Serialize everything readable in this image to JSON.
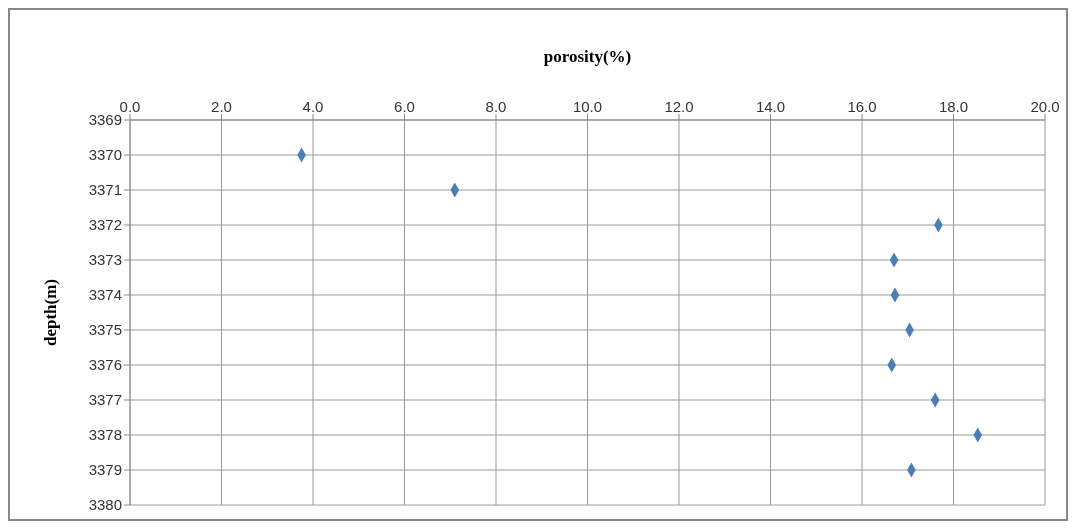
{
  "chart_data": {
    "type": "scatter",
    "xlabel": "porosity(%)",
    "ylabel": "depth(m)",
    "x": [
      3.75,
      7.1,
      17.67,
      16.7,
      16.72,
      17.04,
      16.65,
      17.6,
      18.53,
      17.08
    ],
    "values": [
      3370,
      3371,
      3372,
      3373,
      3374,
      3375,
      3376,
      3377,
      3378,
      3379
    ],
    "color": "#4a7ebb",
    "marker": "diamond",
    "grid": true,
    "xlim": [
      0,
      20
    ],
    "xticks": [
      {
        "value": 0,
        "label": "0.0"
      },
      {
        "value": 2,
        "label": "2.0"
      },
      {
        "value": 4,
        "label": "4.0"
      },
      {
        "value": 6,
        "label": "6.0"
      },
      {
        "value": 8,
        "label": "8.0"
      },
      {
        "value": 10,
        "label": "10.0"
      },
      {
        "value": 12,
        "label": "12.0"
      },
      {
        "value": 14,
        "label": "14.0"
      },
      {
        "value": 16,
        "label": "16.0"
      },
      {
        "value": 18,
        "label": "18.0"
      },
      {
        "value": 20,
        "label": "20.0"
      }
    ],
    "ylim": [
      3380,
      3369
    ],
    "yticks": [
      3369,
      3370,
      3371,
      3372,
      3373,
      3374,
      3375,
      3376,
      3377,
      3378,
      3379,
      3380
    ]
  }
}
